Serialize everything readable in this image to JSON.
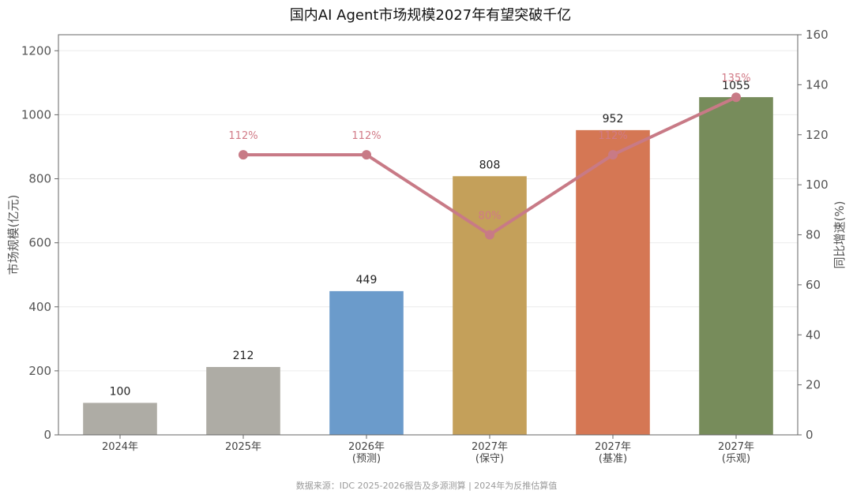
{
  "chart_data": {
    "type": "bar",
    "title": "国内AI Agent市场规模2027年有望突破千亿",
    "categories": [
      [
        "2024年"
      ],
      [
        "2025年"
      ],
      [
        "2026年",
        "(预测)"
      ],
      [
        "2027年",
        "(保守)"
      ],
      [
        "2027年",
        "(基准)"
      ],
      [
        "2027年",
        "(乐观)"
      ]
    ],
    "values": [
      100,
      212,
      449,
      808,
      952,
      1055
    ],
    "value_labels": [
      "100",
      "212",
      "449",
      "808",
      "952",
      "1055"
    ],
    "bar_colors": [
      "#aeaca5",
      "#aeaca5",
      "#6b9bcb",
      "#c4a05a",
      "#d57754",
      "#778c5b"
    ],
    "ylabel": "市场规模(亿元)",
    "ylim": [
      0,
      1250
    ],
    "yticks": [
      0,
      200,
      400,
      600,
      800,
      1000,
      1200
    ],
    "y2label": "同比增速(%)",
    "y2lim": [
      0,
      160
    ],
    "y2ticks": [
      0,
      20,
      40,
      60,
      80,
      100,
      120,
      140,
      160
    ],
    "growth_series": {
      "type": "line",
      "axis": "right",
      "color": "#c87a86",
      "points": [
        {
          "category_index": 1,
          "value": 112,
          "label": "112%"
        },
        {
          "category_index": 2,
          "value": 112,
          "label": "112%"
        },
        {
          "category_index": 3,
          "value": 80,
          "label": "80%"
        },
        {
          "category_index": 4,
          "value": 112,
          "label": "112%"
        },
        {
          "category_index": 5,
          "value": 135,
          "label": "135%"
        }
      ]
    },
    "grid": true,
    "source_note": "数据来源：IDC 2025-2026报告及多源测算 | 2024年为反推估算值"
  }
}
